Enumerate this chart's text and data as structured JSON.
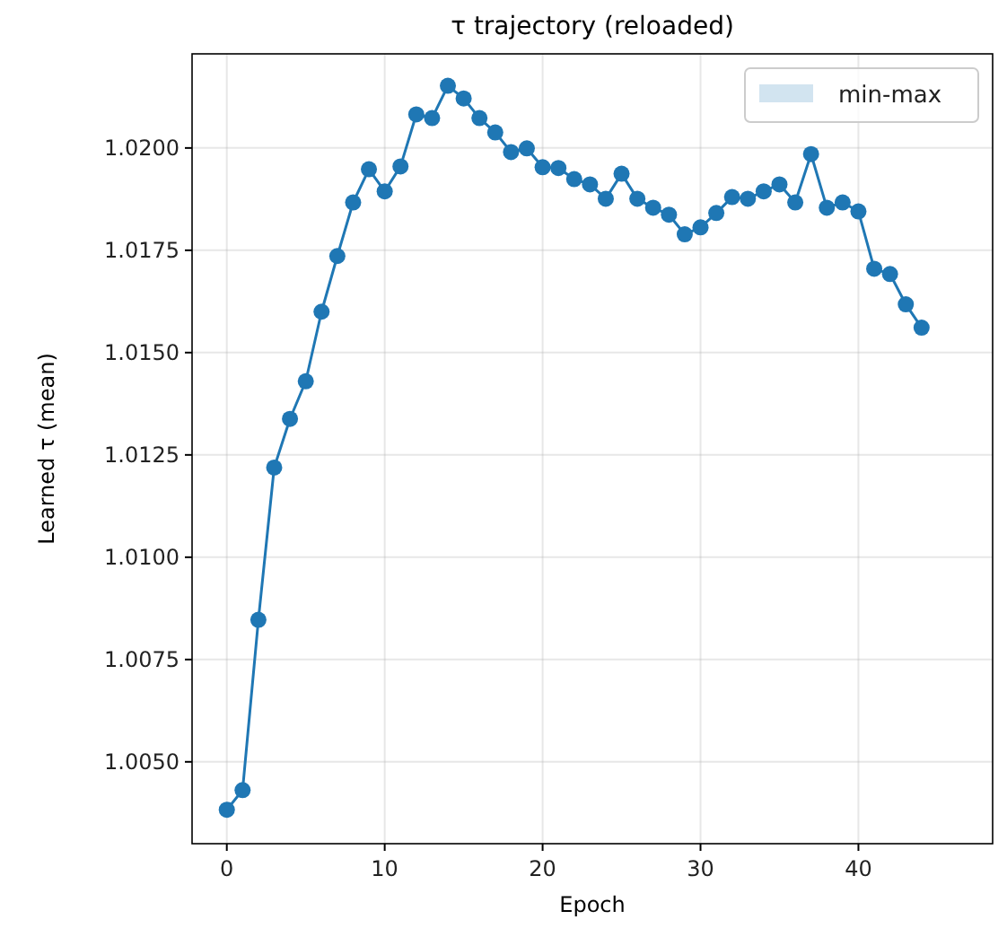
{
  "chart_data": {
    "type": "line",
    "title": "τ trajectory (reloaded)",
    "xlabel": "Epoch",
    "ylabel": "Learned τ (mean)",
    "x": [
      0,
      1,
      2,
      3,
      4,
      5,
      6,
      7,
      8,
      9,
      10,
      11,
      12,
      13,
      14,
      15,
      16,
      17,
      18,
      19,
      20,
      21,
      22,
      23,
      24,
      25,
      26,
      27,
      28,
      29,
      30,
      31,
      32,
      33,
      34,
      35,
      36,
      37,
      38,
      39,
      40,
      41,
      42,
      43,
      44
    ],
    "series": [
      {
        "name": "min-max",
        "color": "#1f77b4",
        "values": [
          1.00383,
          1.00431,
          1.00847,
          1.01219,
          1.01338,
          1.0143,
          1.016,
          1.01736,
          1.01867,
          1.01948,
          1.01894,
          1.01955,
          1.02082,
          1.02073,
          1.02152,
          1.02121,
          1.02073,
          1.02038,
          1.0199,
          1.01999,
          1.01953,
          1.01951,
          1.01924,
          1.01911,
          1.01876,
          1.01937,
          1.01876,
          1.01854,
          1.01837,
          1.01789,
          1.01806,
          1.01841,
          1.0188,
          1.01876,
          1.01894,
          1.01911,
          1.01867,
          1.01985,
          1.01854,
          1.01867,
          1.01845,
          1.01705,
          1.01692,
          1.01618,
          1.01561
        ]
      }
    ],
    "xlim": [
      -2.2,
      48.5
    ],
    "xticks": [
      0,
      10,
      20,
      30,
      40
    ],
    "ylim": [
      1.003,
      1.0223
    ],
    "yticks": [
      {
        "value": 1.005,
        "label": "1.0050"
      },
      {
        "value": 1.0075,
        "label": "1.0075"
      },
      {
        "value": 1.01,
        "label": "1.0100"
      },
      {
        "value": 1.0125,
        "label": "1.0125"
      },
      {
        "value": 1.015,
        "label": "1.0150"
      },
      {
        "value": 1.0175,
        "label": "1.0175"
      },
      {
        "value": 1.02,
        "label": "1.0200"
      }
    ],
    "grid": true,
    "legend": "top right",
    "marker": "circle",
    "line_style": "solid"
  }
}
